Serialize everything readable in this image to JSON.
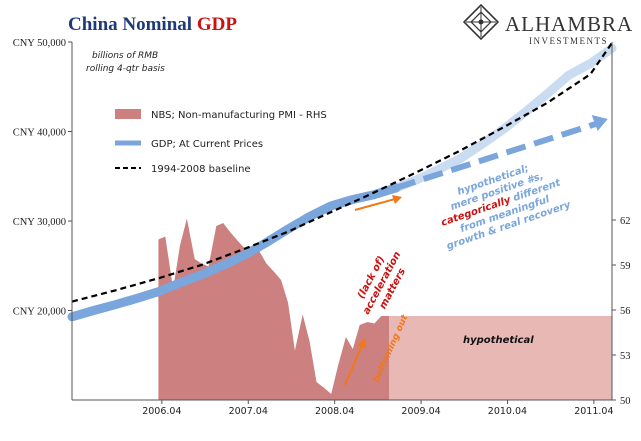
{
  "header": {
    "title_main": "China Nominal ",
    "title_accent": "GDP",
    "title_main_color": "#1f3a78",
    "title_accent_color": "#cc1111",
    "logo_name": "ALHAMBRA",
    "logo_sub": "INVESTMENTS",
    "logo_icon": "diamond-lattice-icon"
  },
  "chart_data": {
    "type": "line",
    "subtitle_lines": [
      "billions of RMB",
      "rolling 4-qtr basis"
    ],
    "x_ticks": [
      "2006.04",
      "2007.04",
      "2008.04",
      "2009.04",
      "2010.04",
      "2011.04"
    ],
    "x_range": [
      2005.0,
      2011.25
    ],
    "y_left": {
      "range": [
        10000,
        50000
      ],
      "ticks": [
        {
          "value": 20000,
          "label": "CNY 20,000"
        },
        {
          "value": 30000,
          "label": "CNY 30,000"
        },
        {
          "value": 40000,
          "label": "CNY 40,000"
        },
        {
          "value": 50000,
          "label": "CNY 50,000"
        }
      ]
    },
    "y_right": {
      "range": [
        50,
        71
      ],
      "ticks": [
        "50",
        "53",
        "56",
        "59",
        "62"
      ]
    },
    "legend": {
      "placement": "top-left",
      "items": [
        {
          "name": "NBS; Non-manufacturing PMI - RHS",
          "style": "area",
          "color": "#cc8080"
        },
        {
          "name": "GDP; At Current Prices",
          "style": "line",
          "color": "#7aa6dc"
        },
        {
          "name": "1994-2008 baseline",
          "style": "dashed",
          "color": "#000000"
        }
      ]
    },
    "series": [
      {
        "name": "NBS; Non-manufacturing PMI - RHS",
        "axis": "right",
        "color": "#cc8080",
        "points": [
          [
            2006.0,
            50
          ],
          [
            2006.0,
            60.7
          ],
          [
            2006.08,
            60.9
          ],
          [
            2006.17,
            57.4
          ],
          [
            2006.25,
            60.3
          ],
          [
            2006.33,
            62.1
          ],
          [
            2006.42,
            59.4
          ],
          [
            2006.5,
            59.1
          ],
          [
            2006.58,
            58.9
          ],
          [
            2006.67,
            61.6
          ],
          [
            2006.75,
            61.8
          ],
          [
            2006.83,
            61.2
          ],
          [
            2006.92,
            60.6
          ],
          [
            2007.0,
            60.1
          ],
          [
            2007.08,
            60.2
          ],
          [
            2007.17,
            59.9
          ],
          [
            2007.25,
            59.1
          ],
          [
            2007.33,
            58.6
          ],
          [
            2007.42,
            58.0
          ],
          [
            2007.5,
            56.5
          ],
          [
            2007.58,
            53.3
          ],
          [
            2007.67,
            55.7
          ],
          [
            2007.75,
            53.9
          ],
          [
            2007.83,
            51.2
          ],
          [
            2007.92,
            50.8
          ],
          [
            2008.0,
            50.4
          ],
          [
            2008.08,
            52.3
          ],
          [
            2008.17,
            54.2
          ],
          [
            2008.25,
            53.4
          ],
          [
            2008.33,
            55.0
          ],
          [
            2008.42,
            55.2
          ],
          [
            2008.5,
            55.1
          ],
          [
            2008.58,
            55.6
          ],
          [
            2008.67,
            55.6
          ],
          [
            2008.67,
            50
          ]
        ]
      },
      {
        "name": "hypothetical",
        "axis": "right",
        "color": "#e8b8b4",
        "points": [
          [
            2008.67,
            50
          ],
          [
            2008.67,
            55.6
          ],
          [
            2011.25,
            55.6
          ],
          [
            2011.25,
            50
          ]
        ]
      },
      {
        "name": "GDP; At Current Prices",
        "axis": "left",
        "color": "#7aa6dc",
        "points": [
          [
            2005.0,
            19300
          ],
          [
            2005.25,
            20000
          ],
          [
            2005.5,
            20650
          ],
          [
            2005.75,
            21350
          ],
          [
            2006.0,
            22100
          ],
          [
            2006.25,
            23100
          ],
          [
            2006.5,
            24000
          ],
          [
            2006.75,
            25050
          ],
          [
            2007.0,
            26200
          ],
          [
            2007.25,
            27600
          ],
          [
            2007.5,
            29100
          ],
          [
            2007.75,
            30500
          ],
          [
            2008.0,
            31700
          ],
          [
            2008.25,
            32400
          ],
          [
            2008.5,
            32950
          ],
          [
            2008.75,
            33700
          ]
        ]
      },
      {
        "name": "GDP hypothetical extension",
        "axis": "left",
        "color": "#cadcf2",
        "points": [
          [
            2008.75,
            33700
          ],
          [
            2009.0,
            34650
          ],
          [
            2009.25,
            35800
          ],
          [
            2009.5,
            37000
          ],
          [
            2009.75,
            38600
          ],
          [
            2010.0,
            40300
          ],
          [
            2010.25,
            42200
          ],
          [
            2010.5,
            44200
          ],
          [
            2010.75,
            46300
          ],
          [
            2011.0,
            47600
          ],
          [
            2011.25,
            49300
          ]
        ]
      },
      {
        "name": "1994-2008 baseline",
        "axis": "left",
        "color": "#000000",
        "points": [
          [
            2005.0,
            21000
          ],
          [
            2005.5,
            22250
          ],
          [
            2006.0,
            23600
          ],
          [
            2006.5,
            25100
          ],
          [
            2007.0,
            26900
          ],
          [
            2007.5,
            28800
          ],
          [
            2008.0,
            31000
          ],
          [
            2008.5,
            33200
          ],
          [
            2009.0,
            35500
          ],
          [
            2009.5,
            37900
          ],
          [
            2010.0,
            40500
          ],
          [
            2010.5,
            43200
          ],
          [
            2011.0,
            46400
          ],
          [
            2011.25,
            49900
          ]
        ]
      },
      {
        "name": "hypothetical positive trend",
        "axis": "left",
        "color": "#7aa6dc",
        "points": [
          [
            2008.75,
            33700
          ],
          [
            2011.2,
            41400
          ]
        ]
      }
    ],
    "annotations": {
      "hypothetical_box_label": "hypothetical",
      "accel_text": [
        "(lack of)",
        "acceleration",
        "matters"
      ],
      "bottoming_text": "bottoming out",
      "hypo_note_lines": [
        "hypothetical;",
        "mere positive #s,",
        "categorically",
        "different",
        "from meaningful",
        "growth & real recovery"
      ],
      "hypo_note_accent": "categorically",
      "note_color": "#7aa6dc",
      "accent_color": "#cc1111",
      "arrow_color": "#f07818"
    }
  }
}
